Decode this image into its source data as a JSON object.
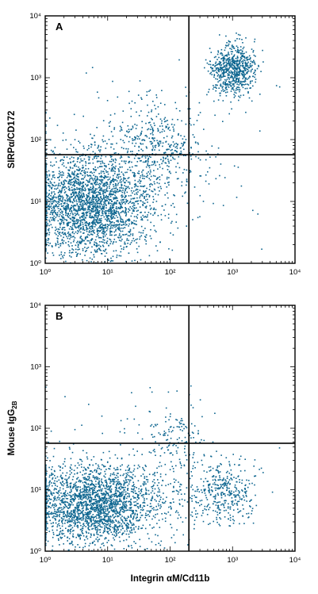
{
  "figure": {
    "x_axis_title": "Integrin αM/Cd11b",
    "dot_color": "#0e6690"
  },
  "chart_data": [
    {
      "type": "scatter",
      "panel_label": "A",
      "xscale": "log",
      "yscale": "log",
      "xlim": [
        1,
        10000
      ],
      "ylim": [
        1,
        10000
      ],
      "xticks": [
        "10⁰",
        "10¹",
        "10²",
        "10³",
        "10⁴"
      ],
      "yticks": [
        "10⁰",
        "10¹",
        "10²",
        "10³",
        "10⁴"
      ],
      "xlabel": "",
      "ylabel": "SIRPα/CD172",
      "quadrant_gate": {
        "x": 200,
        "y": 57
      },
      "populations": [
        {
          "description": "double-negative main cluster",
          "x_center": 5,
          "y_center": 9,
          "x_spread": 0.5,
          "y_spread": 0.42,
          "count": 2600
        },
        {
          "description": "diagonal transition cells",
          "x_center": 60,
          "y_center": 80,
          "x_spread": 0.35,
          "y_spread": 0.35,
          "count": 420
        },
        {
          "description": "double-positive cluster",
          "x_center": 1000,
          "y_center": 1400,
          "x_spread": 0.18,
          "y_spread": 0.2,
          "count": 700
        },
        {
          "description": "sparse background",
          "x_center": 30,
          "y_center": 30,
          "x_spread": 0.9,
          "y_spread": 0.7,
          "count": 160
        }
      ]
    },
    {
      "type": "scatter",
      "panel_label": "B",
      "xscale": "log",
      "yscale": "log",
      "xlim": [
        1,
        10000
      ],
      "ylim": [
        1,
        10000
      ],
      "xticks": [
        "10⁰",
        "10¹",
        "10²",
        "10³",
        "10⁴"
      ],
      "yticks": [
        "10⁰",
        "10¹",
        "10²",
        "10³",
        "10⁴"
      ],
      "xlabel": "Integrin αM/Cd11b",
      "ylabel": "Mouse IgG",
      "ylabel_subscript": "2B",
      "quadrant_gate": {
        "x": 200,
        "y": 57
      },
      "populations": [
        {
          "description": "double-negative main cluster",
          "x_center": 6,
          "y_center": 6,
          "x_spread": 0.55,
          "y_spread": 0.32,
          "count": 2400
        },
        {
          "description": "CD11b-positive isotype cluster",
          "x_center": 700,
          "y_center": 9,
          "x_spread": 0.25,
          "y_spread": 0.25,
          "count": 380
        },
        {
          "description": "small upper diagonal population",
          "x_center": 120,
          "y_center": 70,
          "x_spread": 0.25,
          "y_spread": 0.3,
          "count": 150
        },
        {
          "description": "sparse background",
          "x_center": 30,
          "y_center": 30,
          "x_spread": 0.9,
          "y_spread": 0.8,
          "count": 60
        }
      ]
    }
  ]
}
